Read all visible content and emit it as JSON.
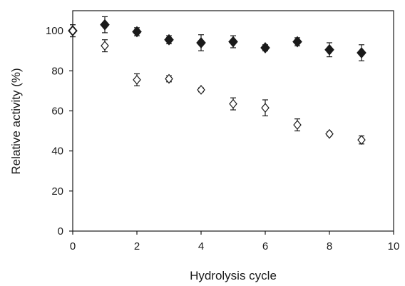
{
  "chart_data": {
    "type": "scatter",
    "xlabel": "Hydrolysis cycle",
    "ylabel": "Relative activity (%)",
    "xlim": [
      0,
      10
    ],
    "ylim": [
      0,
      110
    ],
    "xticks": [
      0,
      2,
      4,
      6,
      8,
      10
    ],
    "yticks": [
      0,
      20,
      40,
      60,
      80,
      100
    ],
    "grid": false,
    "legend": "none",
    "series": [
      {
        "marker": "filled-diamond",
        "color": "#1a1a1a",
        "x": [
          0,
          1,
          2,
          3,
          4,
          5,
          6,
          7,
          8,
          9
        ],
        "y": [
          100,
          103,
          99.5,
          95.5,
          94,
          94.5,
          91.5,
          94.5,
          90.5,
          89
        ],
        "error": [
          3,
          4,
          2,
          2,
          4,
          3,
          1.5,
          2,
          3.5,
          4
        ]
      },
      {
        "marker": "open-diamond",
        "color": "#1a1a1a",
        "x": [
          0,
          1,
          2,
          3,
          4,
          5,
          6,
          7,
          8,
          9
        ],
        "y": [
          100,
          92.5,
          75.5,
          76,
          70.5,
          63.5,
          61.5,
          53,
          48.5,
          45.5
        ],
        "error": [
          3,
          3,
          3,
          1.5,
          1,
          3,
          4,
          3,
          1,
          2
        ]
      }
    ]
  }
}
